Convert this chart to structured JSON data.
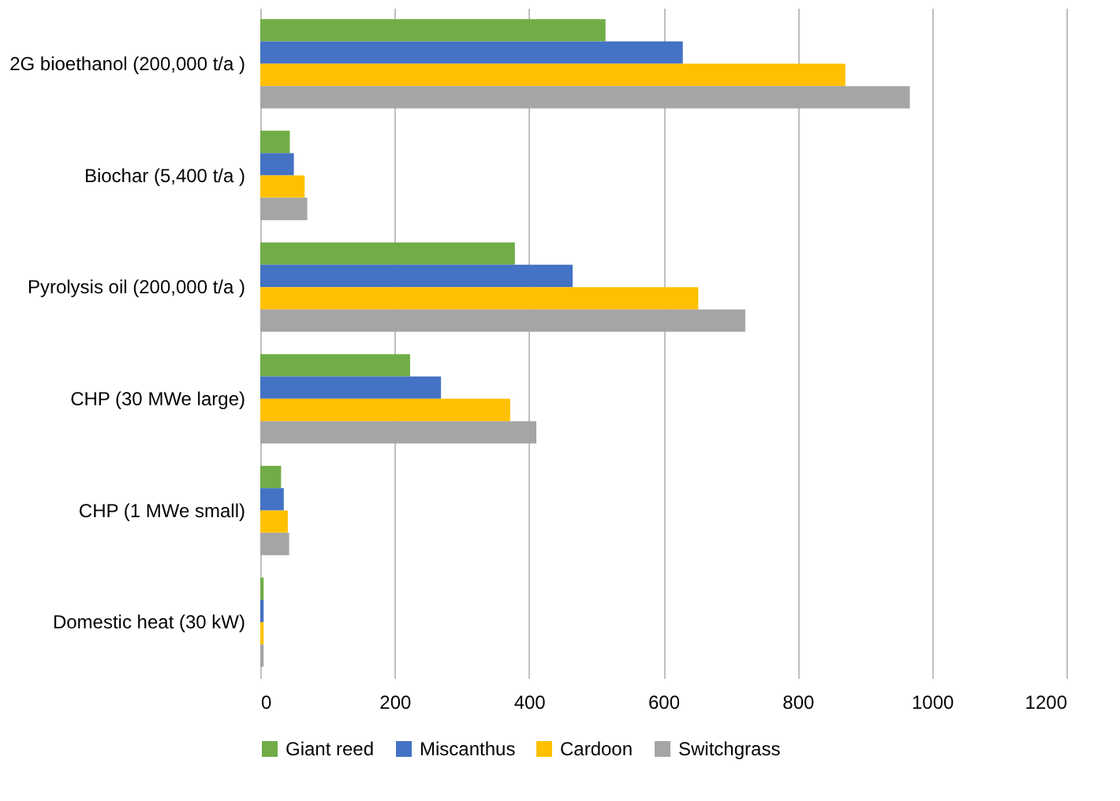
{
  "chart_data": {
    "type": "bar",
    "orientation": "horizontal",
    "categories": [
      "2G bioethanol (200,000 t/a )",
      "Biochar (5,400 t/a )",
      "Pyrolysis oil (200,000 t/a )",
      "CHP (30 MWe large)",
      "CHP (1 MWe small)",
      "Domestic heat (30 kW)"
    ],
    "series": [
      {
        "name": "Giant reed",
        "color": "#70ad47",
        "values": [
          514,
          44,
          379,
          223,
          31,
          5
        ]
      },
      {
        "name": "Miscanthus",
        "color": "#4472c4",
        "values": [
          629,
          50,
          465,
          269,
          35,
          5
        ]
      },
      {
        "name": "Cardoon",
        "color": "#ffc000",
        "values": [
          871,
          66,
          652,
          372,
          41,
          5
        ]
      },
      {
        "name": "Switchgrass",
        "color": "#a5a5a5",
        "values": [
          967,
          70,
          722,
          411,
          43,
          5
        ]
      }
    ],
    "xlim": [
      0,
      1200
    ],
    "xticks": [
      0,
      200,
      400,
      600,
      800,
      1000,
      1200
    ],
    "grid": "x",
    "legend": "bottom"
  }
}
